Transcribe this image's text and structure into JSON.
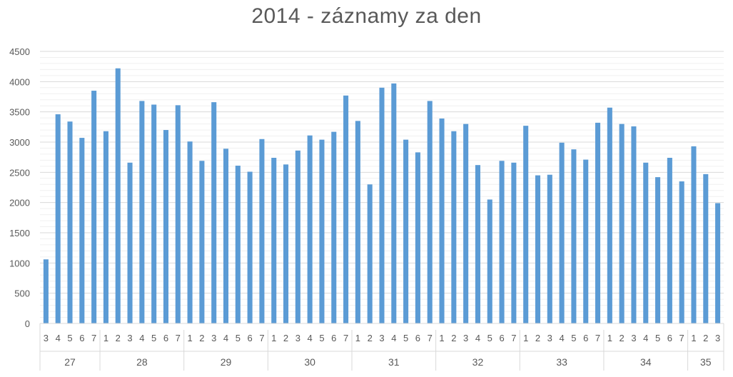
{
  "chart_data": {
    "type": "bar",
    "title": "2014 - záznamy za den",
    "xlabel": "",
    "ylabel": "",
    "ylim": [
      0,
      4500
    ],
    "yticks": [
      0,
      500,
      1000,
      1500,
      2000,
      2500,
      3000,
      3500,
      4000,
      4500
    ],
    "grid": true,
    "legend": "none",
    "bar_color": "#5b9bd5",
    "groups": [
      {
        "label": "27",
        "days": [
          "3",
          "4",
          "5",
          "6",
          "7"
        ],
        "values": [
          1060,
          3460,
          3340,
          3070,
          3850
        ]
      },
      {
        "label": "28",
        "days": [
          "1",
          "2",
          "3",
          "4",
          "5",
          "6",
          "7"
        ],
        "values": [
          3180,
          4220,
          2660,
          3680,
          3620,
          3200,
          3610
        ]
      },
      {
        "label": "29",
        "days": [
          "1",
          "2",
          "3",
          "4",
          "5",
          "6",
          "7"
        ],
        "values": [
          3010,
          2690,
          3660,
          2890,
          2610,
          2510,
          3050
        ]
      },
      {
        "label": "30",
        "days": [
          "1",
          "2",
          "3",
          "4",
          "5",
          "6",
          "7"
        ],
        "values": [
          2740,
          2630,
          2860,
          3110,
          3040,
          3170,
          3770
        ]
      },
      {
        "label": "31",
        "days": [
          "1",
          "2",
          "3",
          "4",
          "5",
          "6",
          "7"
        ],
        "values": [
          3350,
          2300,
          3900,
          3970,
          3040,
          2830,
          3680
        ]
      },
      {
        "label": "32",
        "days": [
          "1",
          "2",
          "3",
          "4",
          "5",
          "6",
          "7"
        ],
        "values": [
          3390,
          3180,
          3300,
          2620,
          2050,
          2690,
          2660
        ]
      },
      {
        "label": "33",
        "days": [
          "1",
          "2",
          "3",
          "4",
          "5",
          "6",
          "7"
        ],
        "values": [
          3270,
          2450,
          2460,
          2990,
          2880,
          2710,
          3320
        ]
      },
      {
        "label": "34",
        "days": [
          "1",
          "2",
          "3",
          "4",
          "5",
          "6",
          "7"
        ],
        "values": [
          3570,
          3300,
          3260,
          2660,
          2420,
          2740,
          2350
        ]
      },
      {
        "label": "35",
        "days": [
          "1",
          "2",
          "3"
        ],
        "values": [
          2930,
          2470,
          1990
        ]
      }
    ]
  }
}
